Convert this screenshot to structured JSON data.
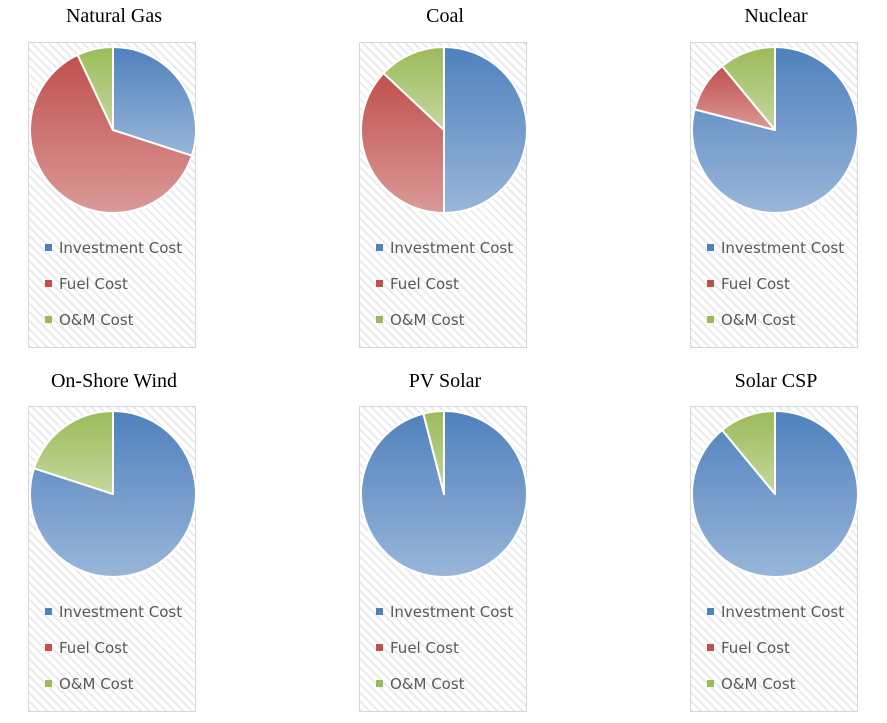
{
  "legend": {
    "labels": [
      "Investment Cost",
      "Fuel Cost",
      "O&M Cost"
    ],
    "colors": [
      "#4f81bd",
      "#c0504d",
      "#9bbb59"
    ]
  },
  "chart_data": [
    {
      "type": "pie",
      "title": "Natural Gas",
      "categories": [
        "Investment Cost",
        "Fuel Cost",
        "O&M Cost"
      ],
      "values": [
        30,
        63,
        7
      ]
    },
    {
      "type": "pie",
      "title": "Coal",
      "categories": [
        "Investment Cost",
        "Fuel Cost",
        "O&M Cost"
      ],
      "values": [
        50,
        37,
        13
      ]
    },
    {
      "type": "pie",
      "title": "Nuclear",
      "categories": [
        "Investment Cost",
        "Fuel Cost",
        "O&M Cost"
      ],
      "values": [
        79,
        10,
        11
      ]
    },
    {
      "type": "pie",
      "title": "On-Shore Wind",
      "categories": [
        "Investment Cost",
        "Fuel Cost",
        "O&M Cost"
      ],
      "values": [
        80,
        0,
        20
      ]
    },
    {
      "type": "pie",
      "title": "PV Solar",
      "categories": [
        "Investment Cost",
        "Fuel Cost",
        "O&M Cost"
      ],
      "values": [
        96,
        0,
        4
      ]
    },
    {
      "type": "pie",
      "title": "Solar CSP",
      "categories": [
        "Investment Cost",
        "Fuel Cost",
        "O&M Cost"
      ],
      "values": [
        89,
        0,
        11
      ]
    }
  ]
}
